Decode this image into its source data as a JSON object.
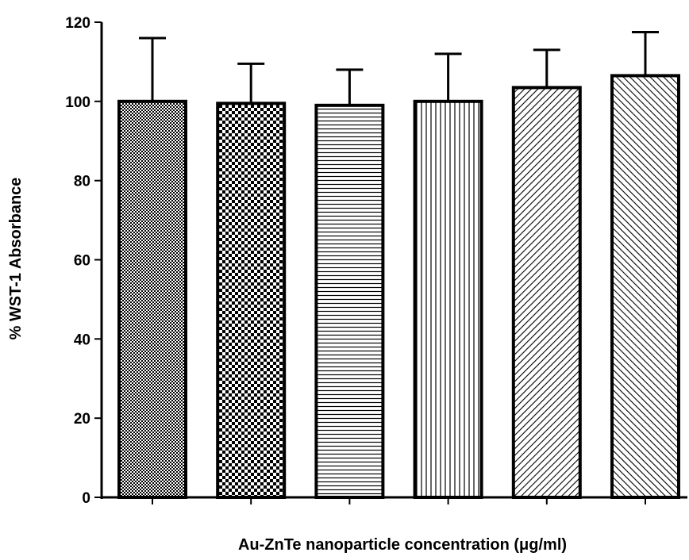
{
  "chart_data": {
    "type": "bar",
    "title": "",
    "xlabel": "Au-ZnTe nanoparticle concentration (μg/ml)",
    "ylabel": "% WST-1 Absorbance",
    "ylim": [
      0,
      120
    ],
    "yticks": [
      0,
      20,
      40,
      60,
      80,
      100,
      120
    ],
    "categories": [
      "",
      "",
      "",
      "",
      "",
      ""
    ],
    "values": [
      100,
      99.5,
      99,
      100,
      103.5,
      106.5
    ],
    "error_upper": [
      16,
      10,
      9,
      12,
      9.5,
      11
    ],
    "patterns": [
      "dense-dots",
      "checker",
      "horizontal-lines",
      "vertical-lines",
      "diagonal-right",
      "diagonal-left"
    ],
    "grid": false,
    "legend": "none",
    "colors": {
      "bar_stroke": "#000000",
      "pattern": "#000000",
      "background": "#ffffff"
    }
  }
}
